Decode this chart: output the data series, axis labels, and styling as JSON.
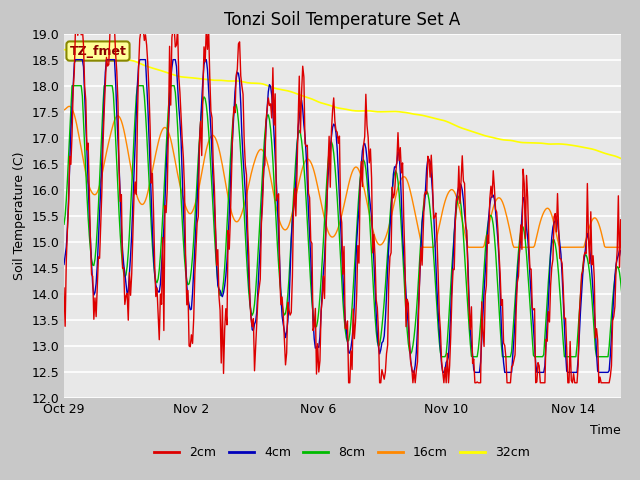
{
  "title": "Tonzi Soil Temperature Set A",
  "ylabel": "Soil Temperature (C)",
  "xlabel": "Time",
  "ylim": [
    12.0,
    19.0
  ],
  "yticks": [
    12.0,
    12.5,
    13.0,
    13.5,
    14.0,
    14.5,
    15.0,
    15.5,
    16.0,
    16.5,
    17.0,
    17.5,
    18.0,
    18.5,
    19.0
  ],
  "xtick_labels": [
    "Oct 29",
    "Nov 2",
    "Nov 6",
    "Nov 10",
    "Nov 14"
  ],
  "xtick_positions": [
    0,
    4,
    8,
    12,
    16
  ],
  "xlim": [
    0,
    17.5
  ],
  "line_colors": [
    "#dd0000",
    "#0000bb",
    "#00bb00",
    "#ff8800",
    "#ffff00"
  ],
  "line_labels": [
    "2cm",
    "4cm",
    "8cm",
    "16cm",
    "32cm"
  ],
  "line_widths": [
    1.0,
    1.0,
    1.0,
    1.0,
    1.2
  ],
  "fig_bg": "#c8c8c8",
  "plot_bg": "#e8e8e8",
  "grid_color": "#ffffff",
  "annotation_text": "TZ_fmet",
  "annotation_bg": "#ffff99",
  "annotation_border": "#888800",
  "annotation_text_color": "#880000",
  "title_fontsize": 12,
  "label_fontsize": 9,
  "tick_fontsize": 9,
  "legend_fontsize": 9,
  "n_points": 500
}
